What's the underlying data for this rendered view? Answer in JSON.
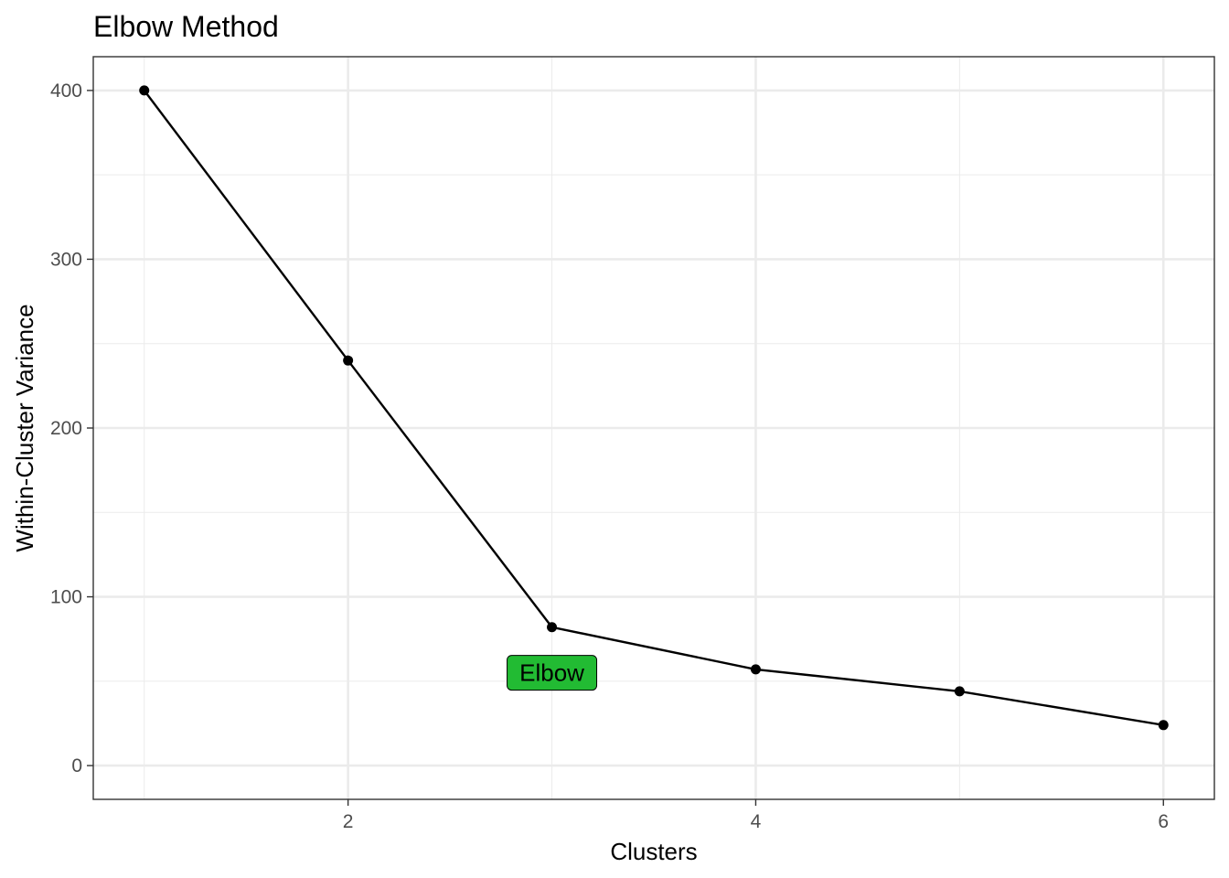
{
  "chart_data": {
    "type": "line",
    "title": "Elbow Method",
    "xlabel": "Clusters",
    "ylabel": "Within-Cluster Variance",
    "x": [
      1,
      2,
      3,
      4,
      5,
      6
    ],
    "series": [
      {
        "values": [
          400,
          240,
          82,
          57,
          44,
          24
        ]
      }
    ],
    "xlim": [
      0.75,
      6.25
    ],
    "ylim": [
      -20,
      420
    ],
    "x_ticks": [
      2,
      4,
      6
    ],
    "x_tick_labels": [
      "2",
      "4",
      "6"
    ],
    "y_ticks": [
      0,
      100,
      200,
      300,
      400
    ],
    "y_tick_labels": [
      "0",
      "100",
      "200",
      "300",
      "400"
    ],
    "grid": true,
    "annotation": {
      "text": "Elbow",
      "x": 3,
      "y": 55,
      "fill": "#22bb33"
    },
    "colors": {
      "line": "#000000",
      "grid": "#ebebeb",
      "border": "#333333"
    }
  }
}
